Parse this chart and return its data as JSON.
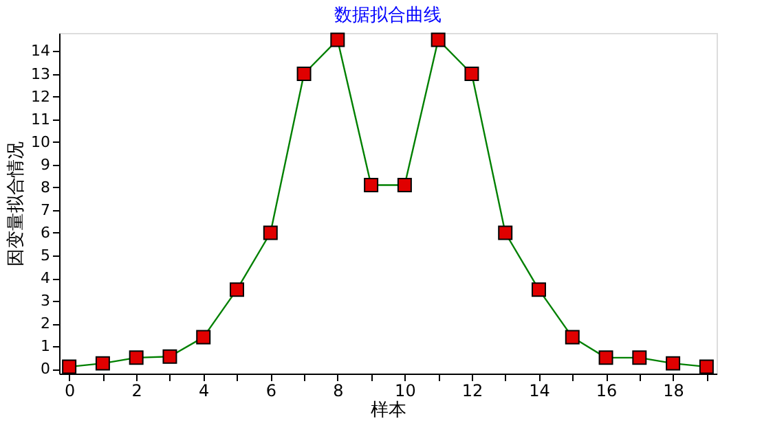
{
  "chart_data": {
    "type": "line",
    "title": "数据拟合曲线",
    "xlabel": "样本",
    "ylabel": "因变量拟合情况",
    "x": [
      0,
      1,
      2,
      3,
      4,
      5,
      6,
      7,
      8,
      9,
      10,
      11,
      12,
      13,
      14,
      15,
      16,
      17,
      18,
      19
    ],
    "series": [
      {
        "color": "#008000",
        "values": [
          0.1,
          0.25,
          0.5,
          0.55,
          1.4,
          3.5,
          6,
          13,
          14.5,
          8.1,
          8.1,
          14.5,
          13,
          6,
          3.5,
          1.4,
          0.5,
          0.5,
          0.25,
          0.1
        ]
      }
    ],
    "xlim": [
      -0.3,
      19.3
    ],
    "ylim": [
      -0.2,
      14.8
    ],
    "xticks": [
      0,
      {
        "value": 1,
        "label": null
      },
      2,
      {
        "value": 3,
        "label": null
      },
      4,
      {
        "value": 5,
        "label": null
      },
      6,
      {
        "value": 7,
        "label": null
      },
      8,
      {
        "value": 9,
        "label": null
      },
      10,
      {
        "value": 11,
        "label": null
      },
      12,
      {
        "value": 13,
        "label": null
      },
      14,
      {
        "value": 15,
        "label": null
      },
      16,
      {
        "value": 17,
        "label": null
      },
      18,
      {
        "value": 19,
        "label": null
      }
    ],
    "yticks": [
      0,
      1,
      2,
      3,
      4,
      5,
      6,
      7,
      8,
      9,
      10,
      11,
      12,
      13,
      14
    ],
    "marker": "square",
    "line_style": "solid",
    "grid": false
  }
}
